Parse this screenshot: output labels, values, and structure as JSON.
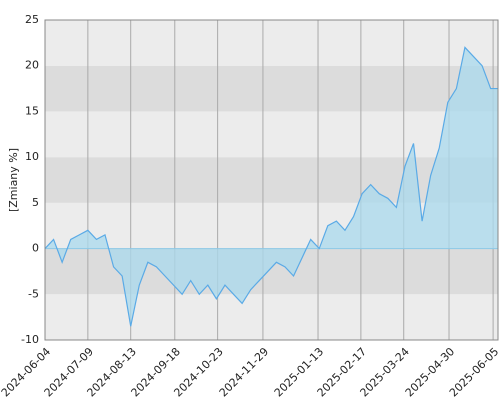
{
  "chart_data": {
    "type": "area",
    "y_label": "[Zmiany %]",
    "x": [
      "2024-06-04",
      "2024-06-11",
      "2024-06-18",
      "2024-06-25",
      "2024-07-02",
      "2024-07-09",
      "2024-07-16",
      "2024-07-23",
      "2024-07-30",
      "2024-08-06",
      "2024-08-13",
      "2024-08-20",
      "2024-08-27",
      "2024-09-03",
      "2024-09-10",
      "2024-09-17",
      "2024-09-24",
      "2024-10-01",
      "2024-10-08",
      "2024-10-15",
      "2024-10-22",
      "2024-10-29",
      "2024-11-05",
      "2024-11-12",
      "2024-11-19",
      "2024-11-26",
      "2024-12-03",
      "2024-12-10",
      "2024-12-17",
      "2024-12-24",
      "2024-12-31",
      "2025-01-07",
      "2025-01-14",
      "2025-01-21",
      "2025-01-28",
      "2025-02-04",
      "2025-02-11",
      "2025-02-18",
      "2025-02-25",
      "2025-03-04",
      "2025-03-11",
      "2025-03-18",
      "2025-03-25",
      "2025-04-01",
      "2025-04-08",
      "2025-04-15",
      "2025-04-22",
      "2025-04-29",
      "2025-05-06",
      "2025-05-13",
      "2025-05-20",
      "2025-05-27",
      "2025-06-03",
      "2025-06-09"
    ],
    "values": [
      0,
      1,
      -1.5,
      1,
      1.5,
      2,
      1,
      1.5,
      -2,
      -3,
      -8.5,
      -4,
      -1.5,
      -2,
      -3,
      -4,
      -5,
      -3.5,
      -5,
      -4,
      -5.5,
      -4,
      -5,
      -6,
      -4.5,
      -3.5,
      -2.5,
      -1.5,
      -2,
      -3,
      -1,
      1,
      0,
      2.5,
      3,
      2,
      3.5,
      6,
      7,
      6,
      5.5,
      4.5,
      9,
      11.5,
      3,
      8,
      11,
      16,
      17.5,
      22,
      21,
      20,
      17.5,
      17.5
    ],
    "color": "#5aaae6",
    "fill": "#a9d9ee",
    "xlim": [
      "2024-06-04",
      "2025-06-09"
    ],
    "xticks": [
      "2024-06-04",
      "2024-07-09",
      "2024-08-13",
      "2024-09-18",
      "2024-10-23",
      "2024-11-29",
      "2025-01-13",
      "2025-02-17",
      "2025-03-24",
      "2025-04-30",
      "2025-06-05"
    ],
    "ylim": [
      -10,
      25
    ],
    "yticks": [
      -10,
      -5,
      0,
      5,
      10,
      15,
      20,
      25
    ],
    "grid": true
  }
}
